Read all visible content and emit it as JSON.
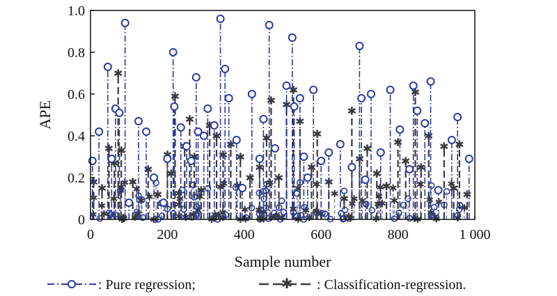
{
  "chart_data": {
    "type": "scatter",
    "title": "",
    "xlabel": "Sample number",
    "ylabel": "APE",
    "xlim": [
      0,
      1000
    ],
    "ylim": [
      0,
      1.0
    ],
    "xticks": [
      0,
      200,
      400,
      600,
      800,
      1000
    ],
    "xtick_labels": [
      "0",
      "200",
      "400",
      "600",
      "800",
      "1 000"
    ],
    "yticks": [
      0,
      0.2,
      0.4,
      0.6,
      0.8,
      1.0
    ],
    "ytick_labels": [
      "0",
      "0.2",
      "0.4",
      "0.6",
      "0.8",
      "1.0"
    ],
    "grid": false,
    "legend_position": "bottom",
    "series": [
      {
        "name": "Pure regression",
        "legend_label": ": Pure regression;",
        "color": "#2b3a9c",
        "marker": "circle",
        "line": "dash-dot",
        "x": [
          5,
          22,
          45,
          55,
          65,
          75,
          90,
          100,
          125,
          145,
          165,
          190,
          200,
          215,
          218,
          235,
          250,
          262,
          275,
          280,
          295,
          305,
          322,
          338,
          350,
          360,
          380,
          395,
          420,
          440,
          450,
          465,
          480,
          510,
          525,
          530,
          545,
          555,
          565,
          580,
          600,
          620,
          650,
          680,
          700,
          705,
          715,
          730,
          755,
          780,
          805,
          830,
          840,
          850,
          870,
          885,
          905,
          940,
          955,
          985
        ],
        "y": [
          0.28,
          0.42,
          0.73,
          0.29,
          0.53,
          0.51,
          0.94,
          0.08,
          0.47,
          0.42,
          0.2,
          0.08,
          0.29,
          0.8,
          0.54,
          0.44,
          0.35,
          0.28,
          0.68,
          0.42,
          0.4,
          0.53,
          0.45,
          0.96,
          0.72,
          0.58,
          0.38,
          0.15,
          0.6,
          0.29,
          0.48,
          0.93,
          0.34,
          0.64,
          0.87,
          0.54,
          0.58,
          0.3,
          0.2,
          0.62,
          0.28,
          0.32,
          0.36,
          0.25,
          0.83,
          0.58,
          0.19,
          0.6,
          0.32,
          0.62,
          0.43,
          0.24,
          0.64,
          0.52,
          0.46,
          0.66,
          0.14,
          0.38,
          0.49,
          0.29
        ]
      },
      {
        "name": "Classification-regression",
        "legend_label": ": Classification-regression.",
        "color": "#3a3a3a",
        "marker": "asterisk",
        "line": "dash",
        "x": [
          8,
          30,
          48,
          62,
          72,
          80,
          110,
          150,
          175,
          200,
          210,
          220,
          245,
          258,
          270,
          288,
          310,
          328,
          345,
          365,
          390,
          415,
          440,
          458,
          470,
          490,
          510,
          528,
          545,
          575,
          590,
          620,
          660,
          680,
          700,
          720,
          745,
          770,
          800,
          820,
          845,
          860,
          880,
          920,
          945,
          960,
          980
        ],
        "y": [
          0.18,
          0.15,
          0.34,
          0.27,
          0.7,
          0.33,
          0.18,
          0.24,
          0.12,
          0.31,
          0.22,
          0.59,
          0.35,
          0.48,
          0.3,
          0.14,
          0.45,
          0.4,
          0.31,
          0.36,
          0.3,
          0.2,
          0.25,
          0.39,
          0.57,
          0.2,
          0.55,
          0.62,
          0.47,
          0.25,
          0.41,
          0.18,
          0.1,
          0.52,
          0.29,
          0.34,
          0.22,
          0.16,
          0.37,
          0.28,
          0.61,
          0.25,
          0.4,
          0.35,
          0.15,
          0.36,
          0.12
        ]
      }
    ]
  }
}
